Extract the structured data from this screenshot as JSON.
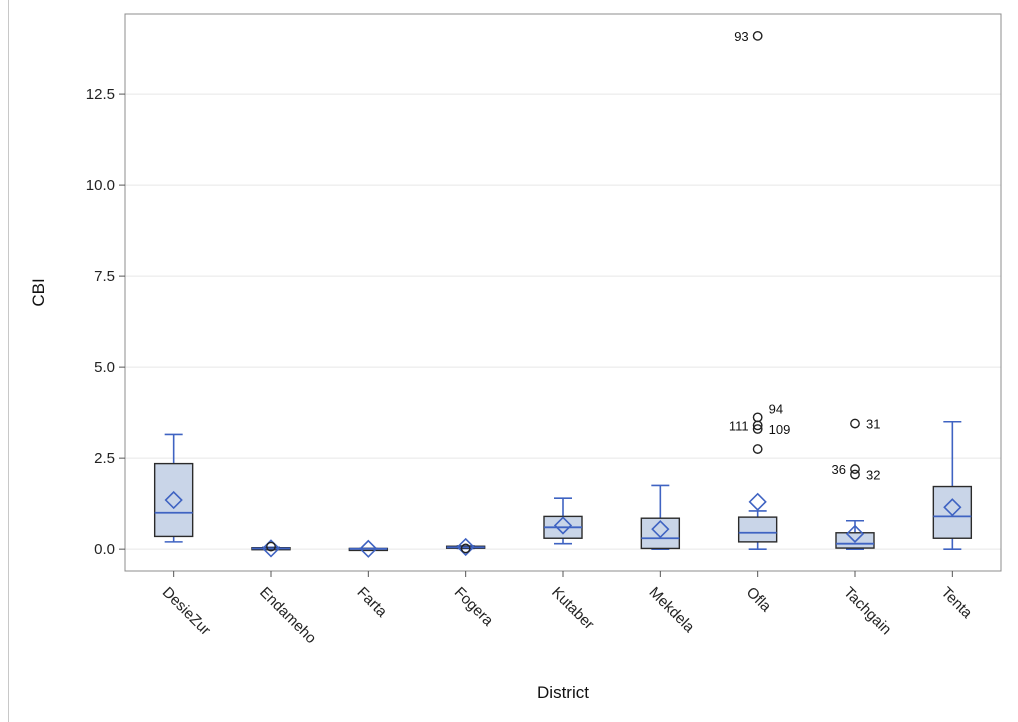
{
  "chart_data": {
    "type": "box",
    "xlabel": "District",
    "ylabel": "CBI",
    "ylim": [
      -0.6,
      14.7
    ],
    "yticks": [
      "0.0",
      "2.5",
      "5.0",
      "7.5",
      "10.0",
      "12.5"
    ],
    "ytick_values": [
      0,
      2.5,
      5,
      7.5,
      10,
      12.5
    ],
    "grid": "horizontal",
    "colors": {
      "box_fill": "#c9d5e8",
      "box_edge": "#2b2b2b",
      "accent": "#3f63c2",
      "grid": "#e6e6e6",
      "outlier": "#222222"
    },
    "categories": [
      "DesieZur",
      "Endameho",
      "Farta",
      "Fogera",
      "Kutaber",
      "Mekdela",
      "Ofla",
      "Tachgain",
      "Tenta"
    ],
    "boxes": [
      {
        "q1": 0.35,
        "median": 1.0,
        "q3": 2.35,
        "whisker_low": 0.2,
        "whisker_high": 3.15,
        "mean": 1.35,
        "outliers": []
      },
      {
        "q1": 0.0,
        "median": 0.02,
        "q3": 0.04,
        "whisker_low": 0.0,
        "whisker_high": 0.05,
        "mean": 0.02,
        "outliers": [
          {
            "value": 0.07,
            "label": ""
          }
        ]
      },
      {
        "q1": 0.0,
        "median": 0.01,
        "q3": 0.02,
        "whisker_low": 0.0,
        "whisker_high": 0.02,
        "mean": 0.01,
        "outliers": []
      },
      {
        "q1": 0.03,
        "median": 0.05,
        "q3": 0.08,
        "whisker_low": 0.02,
        "whisker_high": 0.09,
        "mean": 0.06,
        "outliers": [
          {
            "value": 0.02,
            "label": ""
          }
        ]
      },
      {
        "q1": 0.3,
        "median": 0.6,
        "q3": 0.9,
        "whisker_low": 0.15,
        "whisker_high": 1.4,
        "mean": 0.65,
        "outliers": []
      },
      {
        "q1": 0.02,
        "median": 0.3,
        "q3": 0.85,
        "whisker_low": 0.0,
        "whisker_high": 1.75,
        "mean": 0.55,
        "outliers": []
      },
      {
        "q1": 0.2,
        "median": 0.45,
        "q3": 0.88,
        "whisker_low": 0.0,
        "whisker_high": 1.05,
        "mean": 1.3,
        "outliers": [
          {
            "value": 14.1,
            "label": "93"
          },
          {
            "value": 3.62,
            "label": "94"
          },
          {
            "value": 3.4,
            "label": "111"
          },
          {
            "value": 3.3,
            "label": "109"
          },
          {
            "value": 2.75,
            "label": ""
          }
        ]
      },
      {
        "q1": 0.03,
        "median": 0.15,
        "q3": 0.45,
        "whisker_low": 0.0,
        "whisker_high": 0.78,
        "mean": 0.42,
        "outliers": [
          {
            "value": 3.45,
            "label": "31"
          },
          {
            "value": 2.2,
            "label": "36"
          },
          {
            "value": 2.05,
            "label": "32"
          }
        ]
      },
      {
        "q1": 0.3,
        "median": 0.9,
        "q3": 1.72,
        "whisker_low": 0.0,
        "whisker_high": 3.5,
        "mean": 1.15,
        "outliers": []
      }
    ]
  }
}
